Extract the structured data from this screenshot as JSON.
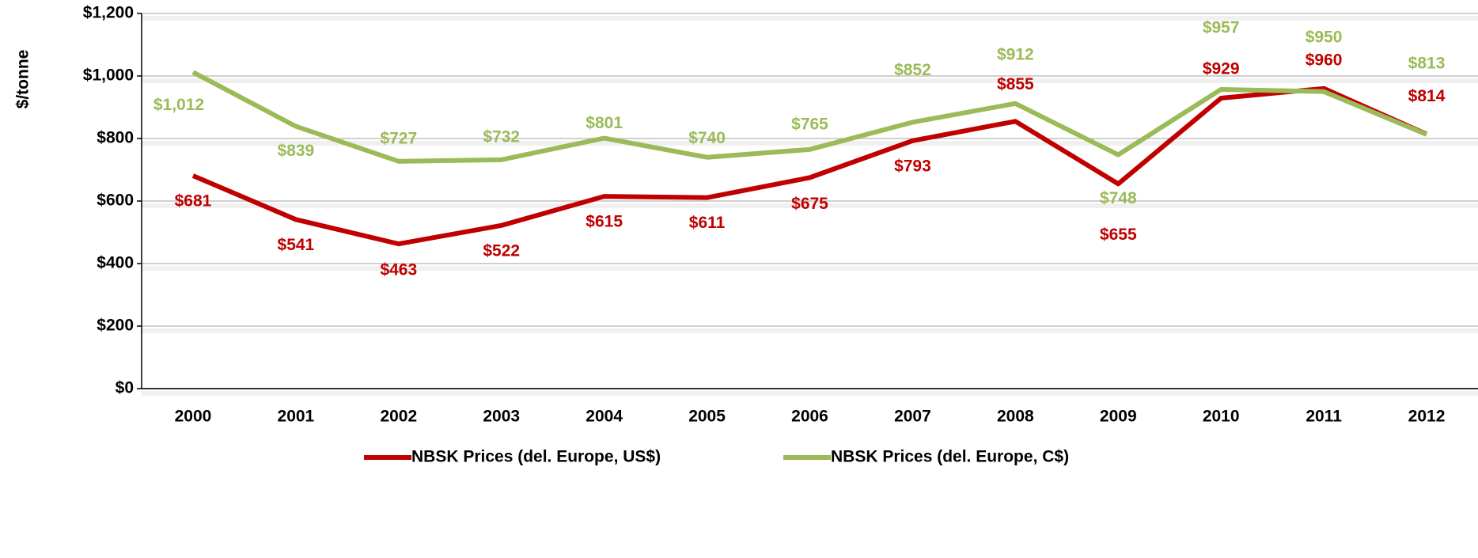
{
  "chart_data": {
    "type": "line",
    "y_label": "$/tonne",
    "categories": [
      "2000",
      "2001",
      "2002",
      "2003",
      "2004",
      "2005",
      "2006",
      "2007",
      "2008",
      "2009",
      "2010",
      "2011",
      "2012"
    ],
    "series": [
      {
        "name": "NBSK Prices (del. Europe, US$)",
        "color": "#c00000",
        "values": [
          681,
          541,
          463,
          522,
          615,
          611,
          675,
          793,
          855,
          655,
          929,
          960,
          814
        ],
        "value_labels": [
          "$681",
          "$541",
          "$463",
          "$522",
          "$615",
          "$611",
          "$675",
          "$793",
          "$855",
          "$655",
          "$929",
          "$960",
          "$814"
        ]
      },
      {
        "name": "NBSK Prices (del. Europe, C$)",
        "color": "#9bbb59",
        "values": [
          1012,
          839,
          727,
          732,
          801,
          740,
          765,
          852,
          912,
          748,
          957,
          950,
          813
        ],
        "value_labels": [
          "$1,012",
          "$839",
          "$727",
          "$732",
          "$801",
          "$740",
          "$765",
          "$852",
          "$912",
          "$748",
          "$957",
          "$950",
          "$813"
        ]
      }
    ],
    "ylim": [
      0,
      1200
    ],
    "yticks": [
      {
        "value": 0,
        "label": "$0"
      },
      {
        "value": 200,
        "label": "$200"
      },
      {
        "value": 400,
        "label": "$400"
      },
      {
        "value": 600,
        "label": "$600"
      },
      {
        "value": 800,
        "label": "$800"
      },
      {
        "value": 1000,
        "label": "$1,000"
      },
      {
        "value": 1200,
        "label": "$1,200"
      }
    ],
    "grid": true,
    "legend": "bottom"
  }
}
